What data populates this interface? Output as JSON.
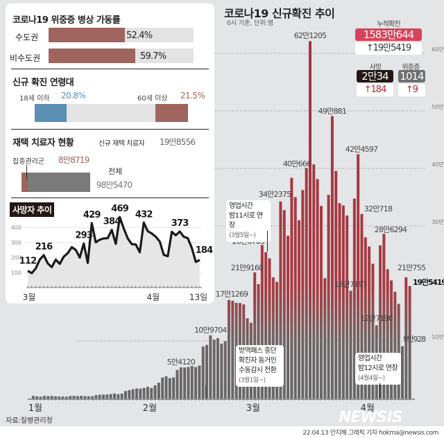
{
  "title": "코로나19 신규확진 추이",
  "subtitle": "0시 기준, 단위:명",
  "summary": {
    "cumulative_label": "누적확진",
    "cumulative": "1583만644",
    "cumulative_delta": "↑19만5419",
    "deaths_label": "사망",
    "deaths": "2만34",
    "deaths_delta": "↑184",
    "critical_label": "위중증",
    "critical": "1014",
    "critical_delta": "↑9"
  },
  "beds": {
    "title": "코로나19 위중증 병상 가동률",
    "rows": [
      {
        "label": "수도권",
        "value_text": "52.4%",
        "value": 52.4
      },
      {
        "label": "비수도권",
        "value_text": "59.7%",
        "value": 59.7
      }
    ]
  },
  "age": {
    "title": "신규 확진 연령대",
    "young_label": "18세 이하",
    "young_value": "20.8%",
    "old_label": "60세 이상",
    "old_value": "21.5%",
    "young": 20.8,
    "old": 21.5,
    "young_color": "#5b8fb4",
    "old_color": "#a0645e"
  },
  "home": {
    "title": "재택 치료자 현황",
    "new_label": "신규 재택 치료자",
    "new_value": "19만8556",
    "intensive_label": "집중관리군",
    "intensive_value": "8만8719",
    "total_label": "전체",
    "total_value": "98만5470",
    "intensive": 88719,
    "total": 985470
  },
  "annotations": {
    "a1": [
      "영업시간",
      "밤11시로 연장",
      "(3월5일~)"
    ],
    "a2": [
      "방역패스 중단",
      "확진자 동거인",
      "수동감시 전환",
      "(3월1일~)"
    ],
    "a3": [
      "영업시간",
      "밤12시로 연장",
      "(4월4일~)"
    ]
  },
  "source": "자료:질병관리청",
  "credit": "22.04.13 안지혜 그래픽 기자 hokma@newsis.com",
  "logo": "NEWSIS",
  "chart_data": [
    {
      "type": "bar",
      "title": "코로나19 신규확진 추이",
      "unit": "명",
      "x_start": "2022-01-01",
      "x_end": "2022-04-13",
      "x_ticks": [
        "1월",
        "2월",
        "3월",
        "4월"
      ],
      "y_ticks": [
        "10만",
        "30만",
        "40만",
        "50만",
        "60만"
      ],
      "ylim": [
        0,
        650000
      ],
      "grid": true,
      "values": [
        4415,
        3833,
        3129,
        4441,
        4126,
        4444,
        3713,
        3511,
        3376,
        3005,
        4388,
        4542,
        4167,
        4423,
        4196,
        3858,
        3857,
        5805,
        6603,
        6769,
        7009,
        7630,
        8571,
        7513,
        8571,
        13012,
        14518,
        16096,
        17542,
        17079,
        18342,
        20270,
        18343,
        22907,
        27443,
        36362,
        38691,
        35286,
        36719,
        49567,
        54120,
        53926,
        54941,
        56431,
        54619,
        57177,
        90443,
        93135,
        109704,
        102211,
        104829,
        95362,
        99573,
        171269,
        170016,
        166209,
        165890,
        163566,
        139626,
        131629,
        219160,
        198799,
        266765,
        254327,
        243628,
        210716,
        202721,
        342375,
        327549,
        282987,
        383665,
        350190,
        309790,
        362338,
        400666,
        621205,
        407017,
        381454,
        334708,
        209169,
        353980,
        490881,
        395598,
        339514,
        335580,
        318130,
        187197,
        347554,
        424597,
        320718,
        280273,
        264171,
        234301,
        127190,
        266135,
        286294,
        224820,
        205333,
        185566,
        164481,
        90928,
        210755,
        195419
      ],
      "data_labels": [
        {
          "day": "2022-02-10",
          "text": "5만4120"
        },
        {
          "day": "2022-02-18",
          "text": "10만9704"
        },
        {
          "day": "2022-02-23",
          "text": "17만1269"
        },
        {
          "day": "2022-03-02",
          "text": "21만9160"
        },
        {
          "day": "2022-03-04",
          "text": "26만6765"
        },
        {
          "day": "2022-03-09",
          "text": "34만2375"
        },
        {
          "day": "2022-03-16",
          "text": "40만666"
        },
        {
          "day": "2022-03-17",
          "text": "62만1205"
        },
        {
          "day": "2022-03-23",
          "text": "49만881"
        },
        {
          "day": "2022-03-28",
          "text": "18만7197"
        },
        {
          "day": "2022-03-30",
          "text": "42만4597"
        },
        {
          "day": "2022-03-31",
          "text": "32만718"
        },
        {
          "day": "2022-04-04",
          "text": "12만7190"
        },
        {
          "day": "2022-04-06",
          "text": "28만6294"
        },
        {
          "day": "2022-04-11",
          "text": "9만928"
        },
        {
          "day": "2022-04-12",
          "text": "21만755"
        },
        {
          "day": "2022-04-13",
          "text": "19만5419"
        }
      ]
    },
    {
      "type": "area",
      "title": "사망자 추이",
      "x_start": "2022-03-01",
      "x_end": "2022-04-13",
      "x_ticks": [
        "3월",
        "4월",
        "13일"
      ],
      "y_ticks": [
        100,
        200,
        300,
        400
      ],
      "ylim": [
        0,
        470
      ],
      "grid": true,
      "values": [
        112,
        96,
        128,
        186,
        216,
        161,
        136,
        186,
        158,
        206,
        229,
        269,
        251,
        200,
        293,
        164,
        429,
        301,
        319,
        327,
        329,
        384,
        291,
        469,
        393,
        327,
        289,
        287,
        235,
        432,
        375,
        360,
        338,
        306,
        218,
        209,
        371,
        348,
        373,
        338,
        329,
        264,
        171,
        184
      ],
      "data_labels": [
        {
          "i": 0,
          "text": "112"
        },
        {
          "i": 4,
          "text": "216"
        },
        {
          "i": 14,
          "text": "293"
        },
        {
          "i": 16,
          "text": "429"
        },
        {
          "i": 21,
          "text": "384"
        },
        {
          "i": 23,
          "text": "469"
        },
        {
          "i": 29,
          "text": "432"
        },
        {
          "i": 38,
          "text": "373"
        },
        {
          "i": 43,
          "text": "184"
        }
      ]
    }
  ]
}
